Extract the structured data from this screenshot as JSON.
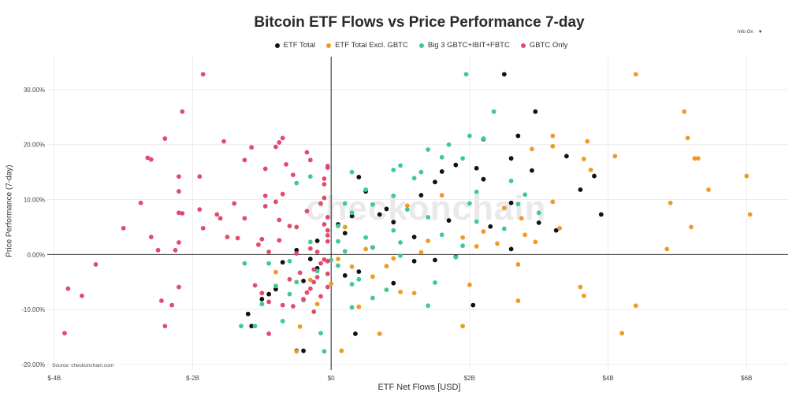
{
  "title": "Bitcoin ETF Flows vs Price Performance 7-day",
  "info_toggle": {
    "label": "Info On",
    "caret": "▼"
  },
  "watermark": "checkonchain",
  "source_note": "Source: checkonchain.com",
  "chart_data": {
    "type": "scatter",
    "title": "Bitcoin ETF Flows vs Price Performance 7-day",
    "xlabel": "ETF Net Flows [USD]",
    "ylabel": "Price Performance (7-day)",
    "x_unit": "USD billions",
    "y_unit": "percent",
    "xlim": [
      -4.1,
      6.6
    ],
    "ylim": [
      -21,
      36
    ],
    "x_ticks": [
      {
        "v": -4,
        "label": "$-4B"
      },
      {
        "v": -2,
        "label": "$-2B"
      },
      {
        "v": 0,
        "label": "$0"
      },
      {
        "v": 2,
        "label": "$2B"
      },
      {
        "v": 4,
        "label": "$4B"
      },
      {
        "v": 6,
        "label": "$6B"
      }
    ],
    "y_ticks": [
      {
        "v": -20,
        "label": "-20.00%"
      },
      {
        "v": -10,
        "label": "-10.00%"
      },
      {
        "v": 0,
        "label": "0.00%"
      },
      {
        "v": 10,
        "label": "10.00%"
      },
      {
        "v": 20,
        "label": "20.00%"
      },
      {
        "v": 30,
        "label": "30.00%"
      }
    ],
    "grid": true,
    "legend_position": "top-center",
    "series": [
      {
        "name": "ETF Total",
        "color": "#111111",
        "points": [
          [
            2.5,
            32.8
          ],
          [
            2.95,
            26.0
          ],
          [
            2.7,
            21.6
          ],
          [
            2.2,
            21.0
          ],
          [
            3.4,
            17.9
          ],
          [
            2.6,
            17.5
          ],
          [
            3.6,
            11.8
          ],
          [
            3.9,
            7.3
          ],
          [
            3.8,
            14.3
          ],
          [
            2.9,
            15.3
          ],
          [
            2.1,
            15.7
          ],
          [
            1.8,
            16.3
          ],
          [
            1.6,
            15.1
          ],
          [
            1.5,
            13.2
          ],
          [
            1.3,
            10.8
          ],
          [
            0.8,
            8.3
          ],
          [
            0.4,
            14.1
          ],
          [
            0.5,
            11.5
          ],
          [
            0.7,
            7.3
          ],
          [
            0.3,
            7.0
          ],
          [
            0.1,
            5.5
          ],
          [
            -0.2,
            2.5
          ],
          [
            -0.5,
            0.8
          ],
          [
            -1.2,
            -10.8
          ],
          [
            -1.15,
            -13.0
          ],
          [
            -0.4,
            -17.5
          ],
          [
            -0.5,
            -17.5
          ],
          [
            0.35,
            -14.4
          ],
          [
            2.05,
            -9.2
          ],
          [
            1.5,
            -1.0
          ],
          [
            1.8,
            -0.4
          ],
          [
            2.6,
            1.0
          ],
          [
            1.2,
            3.2
          ],
          [
            0.9,
            5.9
          ],
          [
            2.3,
            5.1
          ],
          [
            2.6,
            9.4
          ],
          [
            1.7,
            6.2
          ],
          [
            3.0,
            5.8
          ],
          [
            0.2,
            -3.8
          ],
          [
            -0.4,
            -4.8
          ],
          [
            -0.8,
            -6.3
          ],
          [
            -0.2,
            -2.5
          ],
          [
            -0.7,
            -1.4
          ],
          [
            -0.3,
            -0.8
          ],
          [
            0.9,
            -5.2
          ],
          [
            0.4,
            -3.1
          ],
          [
            1.2,
            -1.2
          ],
          [
            -0.9,
            -7.2
          ],
          [
            -1.0,
            -8.1
          ],
          [
            0.6,
            1.3
          ],
          [
            0.2,
            3.9
          ],
          [
            2.2,
            13.7
          ],
          [
            3.25,
            4.4
          ]
        ]
      },
      {
        "name": "ETF Total Excl. GBTC",
        "color": "#ee9b25",
        "points": [
          [
            4.4,
            32.8
          ],
          [
            5.1,
            26.0
          ],
          [
            5.15,
            21.2
          ],
          [
            3.7,
            20.6
          ],
          [
            4.1,
            17.9
          ],
          [
            5.25,
            17.5
          ],
          [
            5.3,
            17.5
          ],
          [
            3.2,
            21.6
          ],
          [
            2.9,
            19.2
          ],
          [
            3.2,
            19.7
          ],
          [
            5.45,
            11.8
          ],
          [
            6.05,
            7.3
          ],
          [
            6.0,
            14.3
          ],
          [
            4.9,
            9.4
          ],
          [
            5.2,
            5.0
          ],
          [
            4.85,
            1.0
          ],
          [
            3.65,
            17.4
          ],
          [
            3.75,
            15.4
          ],
          [
            3.2,
            9.6
          ],
          [
            3.3,
            4.8
          ],
          [
            2.95,
            2.3
          ],
          [
            2.75,
            6.6
          ],
          [
            2.7,
            -1.8
          ],
          [
            2.0,
            -5.5
          ],
          [
            1.9,
            -13.0
          ],
          [
            3.6,
            -5.9
          ],
          [
            3.65,
            -7.5
          ],
          [
            4.4,
            -9.3
          ],
          [
            4.2,
            -14.3
          ],
          [
            2.7,
            -8.4
          ],
          [
            0.7,
            -14.4
          ],
          [
            0.15,
            -17.5
          ],
          [
            -0.5,
            -17.6
          ],
          [
            -0.45,
            -13.1
          ],
          [
            1.2,
            -7.0
          ],
          [
            1.0,
            -6.8
          ],
          [
            0.6,
            -4.0
          ],
          [
            0.3,
            -2.2
          ],
          [
            0.9,
            -0.7
          ],
          [
            0.5,
            1.0
          ],
          [
            1.4,
            2.5
          ],
          [
            1.9,
            3.1
          ],
          [
            2.2,
            4.2
          ],
          [
            2.4,
            2.0
          ],
          [
            1.1,
            8.9
          ],
          [
            1.6,
            10.8
          ],
          [
            2.5,
            8.5
          ],
          [
            0.2,
            5.0
          ],
          [
            0.1,
            -0.8
          ],
          [
            -0.3,
            -4.6
          ],
          [
            -0.8,
            -3.2
          ],
          [
            -0.2,
            -9.0
          ],
          [
            0.4,
            -9.5
          ],
          [
            0.0,
            -5.3
          ],
          [
            0.8,
            -2.1
          ],
          [
            1.3,
            0.4
          ],
          [
            2.1,
            1.5
          ],
          [
            2.8,
            3.6
          ]
        ]
      },
      {
        "name": "Big 3 GBTC+IBIT+FBTC",
        "color": "#3ecb8e",
        "points": [
          [
            1.95,
            32.8
          ],
          [
            2.35,
            26.0
          ],
          [
            2.2,
            21.1
          ],
          [
            2.0,
            21.6
          ],
          [
            1.7,
            20.0
          ],
          [
            1.6,
            17.7
          ],
          [
            1.4,
            19.1
          ],
          [
            1.9,
            17.5
          ],
          [
            1.3,
            15.0
          ],
          [
            1.0,
            16.2
          ],
          [
            0.9,
            15.4
          ],
          [
            1.2,
            13.9
          ],
          [
            0.3,
            15.0
          ],
          [
            0.5,
            11.8
          ],
          [
            0.9,
            10.7
          ],
          [
            1.1,
            8.2
          ],
          [
            0.6,
            9.1
          ],
          [
            0.3,
            7.6
          ],
          [
            0.1,
            5.2
          ],
          [
            -0.3,
            14.2
          ],
          [
            -0.5,
            13.0
          ],
          [
            2.1,
            11.4
          ],
          [
            2.6,
            13.4
          ],
          [
            2.8,
            10.9
          ],
          [
            3.0,
            7.6
          ],
          [
            2.1,
            6.0
          ],
          [
            2.5,
            4.7
          ],
          [
            1.6,
            3.6
          ],
          [
            1.9,
            1.6
          ],
          [
            1.0,
            -0.2
          ],
          [
            0.6,
            1.3
          ],
          [
            0.2,
            0.6
          ],
          [
            0.1,
            -2.0
          ],
          [
            -0.2,
            -3.0
          ],
          [
            -0.6,
            -1.2
          ],
          [
            -1.25,
            -1.6
          ],
          [
            -0.8,
            -5.7
          ],
          [
            -0.6,
            -7.2
          ],
          [
            -1.0,
            -9.0
          ],
          [
            -1.3,
            -13.0
          ],
          [
            -1.1,
            -13.0
          ],
          [
            -0.7,
            -12.1
          ],
          [
            -0.1,
            -17.6
          ],
          [
            -0.15,
            -14.3
          ],
          [
            0.3,
            -9.6
          ],
          [
            0.6,
            -7.9
          ],
          [
            1.4,
            -9.3
          ],
          [
            0.8,
            -6.4
          ],
          [
            1.5,
            -5.1
          ],
          [
            0.4,
            -4.5
          ],
          [
            -0.4,
            -8.3
          ],
          [
            0.0,
            -1.0
          ],
          [
            0.5,
            3.1
          ],
          [
            0.9,
            4.4
          ],
          [
            1.4,
            6.8
          ],
          [
            2.0,
            9.3
          ],
          [
            2.7,
            9.2
          ],
          [
            0.2,
            9.3
          ],
          [
            -0.3,
            2.3
          ],
          [
            -0.9,
            -1.6
          ],
          [
            0.1,
            2.4
          ],
          [
            0.3,
            -5.4
          ],
          [
            -0.5,
            -5.0
          ],
          [
            1.0,
            2.2
          ],
          [
            1.8,
            -0.5
          ]
        ]
      },
      {
        "name": "GBTC Only",
        "color": "#e14b6e",
        "points": [
          [
            -1.85,
            32.8
          ],
          [
            -2.15,
            26.0
          ],
          [
            -2.4,
            21.1
          ],
          [
            -2.65,
            17.6
          ],
          [
            -2.6,
            17.3
          ],
          [
            -1.55,
            20.6
          ],
          [
            -1.25,
            17.2
          ],
          [
            -1.15,
            19.5
          ],
          [
            -0.8,
            19.6
          ],
          [
            -0.7,
            21.2
          ],
          [
            -0.75,
            20.4
          ],
          [
            -0.35,
            18.6
          ],
          [
            -0.3,
            17.2
          ],
          [
            -0.65,
            16.4
          ],
          [
            -0.55,
            14.5
          ],
          [
            -0.95,
            15.6
          ],
          [
            -2.2,
            14.2
          ],
          [
            -1.9,
            14.2
          ],
          [
            -2.2,
            11.5
          ],
          [
            -2.15,
            7.5
          ],
          [
            -2.2,
            7.6
          ],
          [
            -1.9,
            8.2
          ],
          [
            -1.65,
            7.3
          ],
          [
            -1.6,
            6.6
          ],
          [
            -1.25,
            6.6
          ],
          [
            -1.4,
            9.3
          ],
          [
            -0.95,
            8.8
          ],
          [
            -0.95,
            10.7
          ],
          [
            -0.8,
            9.6
          ],
          [
            -0.7,
            11.0
          ],
          [
            -0.75,
            6.3
          ],
          [
            -0.6,
            5.2
          ],
          [
            -0.5,
            5.0
          ],
          [
            -0.35,
            7.9
          ],
          [
            -0.1,
            12.8
          ],
          [
            -0.1,
            13.8
          ],
          [
            -0.05,
            15.8
          ],
          [
            -0.05,
            16.1
          ],
          [
            -2.75,
            9.4
          ],
          [
            -3.0,
            4.8
          ],
          [
            -2.6,
            3.2
          ],
          [
            -2.5,
            0.8
          ],
          [
            -2.25,
            0.8
          ],
          [
            -2.2,
            2.2
          ],
          [
            -1.85,
            4.8
          ],
          [
            -1.5,
            3.2
          ],
          [
            -1.35,
            3.0
          ],
          [
            -1.0,
            2.8
          ],
          [
            -1.05,
            1.8
          ],
          [
            -0.9,
            0.5
          ],
          [
            -3.4,
            -1.8
          ],
          [
            -3.6,
            -7.5
          ],
          [
            -3.8,
            -6.2
          ],
          [
            -3.85,
            -14.3
          ],
          [
            -2.45,
            -8.4
          ],
          [
            -2.3,
            -9.2
          ],
          [
            -2.4,
            -13.0
          ],
          [
            -2.2,
            -5.9
          ],
          [
            -1.1,
            -5.6
          ],
          [
            -1.0,
            -7.0
          ],
          [
            -0.9,
            -8.6
          ],
          [
            -0.9,
            -14.4
          ],
          [
            -0.55,
            -9.4
          ],
          [
            -0.3,
            -6.2
          ],
          [
            -0.25,
            -5.0
          ],
          [
            -0.2,
            -4.1
          ],
          [
            -0.15,
            -1.6
          ],
          [
            -0.1,
            -0.9
          ],
          [
            -0.2,
            0.5
          ],
          [
            -0.3,
            1.1
          ],
          [
            -0.05,
            2.4
          ],
          [
            -0.05,
            3.5
          ],
          [
            -0.05,
            4.4
          ],
          [
            -0.1,
            5.5
          ],
          [
            -0.05,
            6.8
          ],
          [
            -0.25,
            -2.7
          ],
          [
            -0.45,
            -3.3
          ],
          [
            -0.6,
            -4.5
          ],
          [
            -0.35,
            -6.9
          ],
          [
            -0.15,
            -7.6
          ],
          [
            -0.4,
            -8.1
          ],
          [
            -0.7,
            -9.2
          ],
          [
            -0.25,
            -10.4
          ],
          [
            -0.05,
            -3.5
          ],
          [
            -0.05,
            -5.9
          ],
          [
            -0.05,
            -1.2
          ],
          [
            -0.5,
            0.2
          ],
          [
            -0.75,
            2.6
          ],
          [
            -0.15,
            9.3
          ],
          [
            -0.1,
            10.3
          ]
        ]
      }
    ]
  }
}
